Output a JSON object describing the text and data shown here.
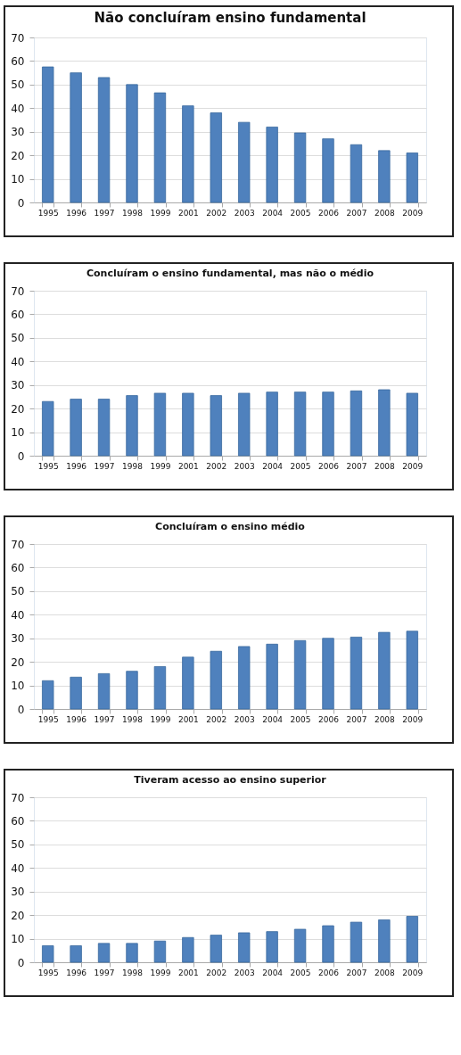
{
  "chart_data": [
    {
      "type": "bar",
      "title": "Não concluíram ensino fundamental",
      "categories": [
        "1995",
        "1996",
        "1997",
        "1998",
        "1999",
        "2001",
        "2002",
        "2003",
        "2004",
        "2005",
        "2006",
        "2007",
        "2008",
        "2009"
      ],
      "values": [
        57.5,
        55,
        53,
        50,
        46.5,
        41,
        38,
        34,
        32,
        29.5,
        27,
        24.5,
        22,
        21
      ],
      "color": "#4f81bd",
      "ylim": [
        0,
        70
      ],
      "yticks": [
        0,
        10,
        20,
        30,
        40,
        50,
        60,
        70
      ],
      "grid": "y"
    },
    {
      "type": "bar",
      "title": "Concluíram o ensino fundamental, mas não o médio",
      "categories": [
        "1995",
        "1996",
        "1997",
        "1998",
        "1999",
        "2001",
        "2002",
        "2003",
        "2004",
        "2005",
        "2006",
        "2007",
        "2008",
        "2009"
      ],
      "values": [
        23,
        24,
        24,
        25.5,
        26.5,
        26.5,
        25.5,
        26.5,
        27,
        27,
        27,
        27.5,
        28,
        26.5
      ],
      "color": "#4f81bd",
      "ylim": [
        0,
        70
      ],
      "yticks": [
        0,
        10,
        20,
        30,
        40,
        50,
        60,
        70
      ],
      "grid": "y"
    },
    {
      "type": "bar",
      "title": "Concluíram o ensino médio",
      "categories": [
        "1995",
        "1996",
        "1997",
        "1998",
        "1999",
        "2001",
        "2002",
        "2003",
        "2004",
        "2005",
        "2006",
        "2007",
        "2008",
        "2009"
      ],
      "values": [
        12,
        13.5,
        15,
        16,
        18,
        22,
        24.5,
        26.5,
        27.5,
        29,
        30,
        30.5,
        32.5,
        33
      ],
      "color": "#4f81bd",
      "ylim": [
        0,
        70
      ],
      "yticks": [
        0,
        10,
        20,
        30,
        40,
        50,
        60,
        70
      ],
      "grid": "y"
    },
    {
      "type": "bar",
      "title": "Tiveram acesso ao ensino superior",
      "categories": [
        "1995",
        "1996",
        "1997",
        "1998",
        "1999",
        "2001",
        "2002",
        "2003",
        "2004",
        "2005",
        "2006",
        "2007",
        "2008",
        "2009"
      ],
      "values": [
        7,
        7,
        8,
        8,
        9,
        10.5,
        11.5,
        12.5,
        13,
        14,
        15.5,
        17,
        18,
        19.5
      ],
      "color": "#4f81bd",
      "ylim": [
        0,
        70
      ],
      "yticks": [
        0,
        10,
        20,
        30,
        40,
        50,
        60,
        70
      ],
      "grid": "y"
    }
  ]
}
